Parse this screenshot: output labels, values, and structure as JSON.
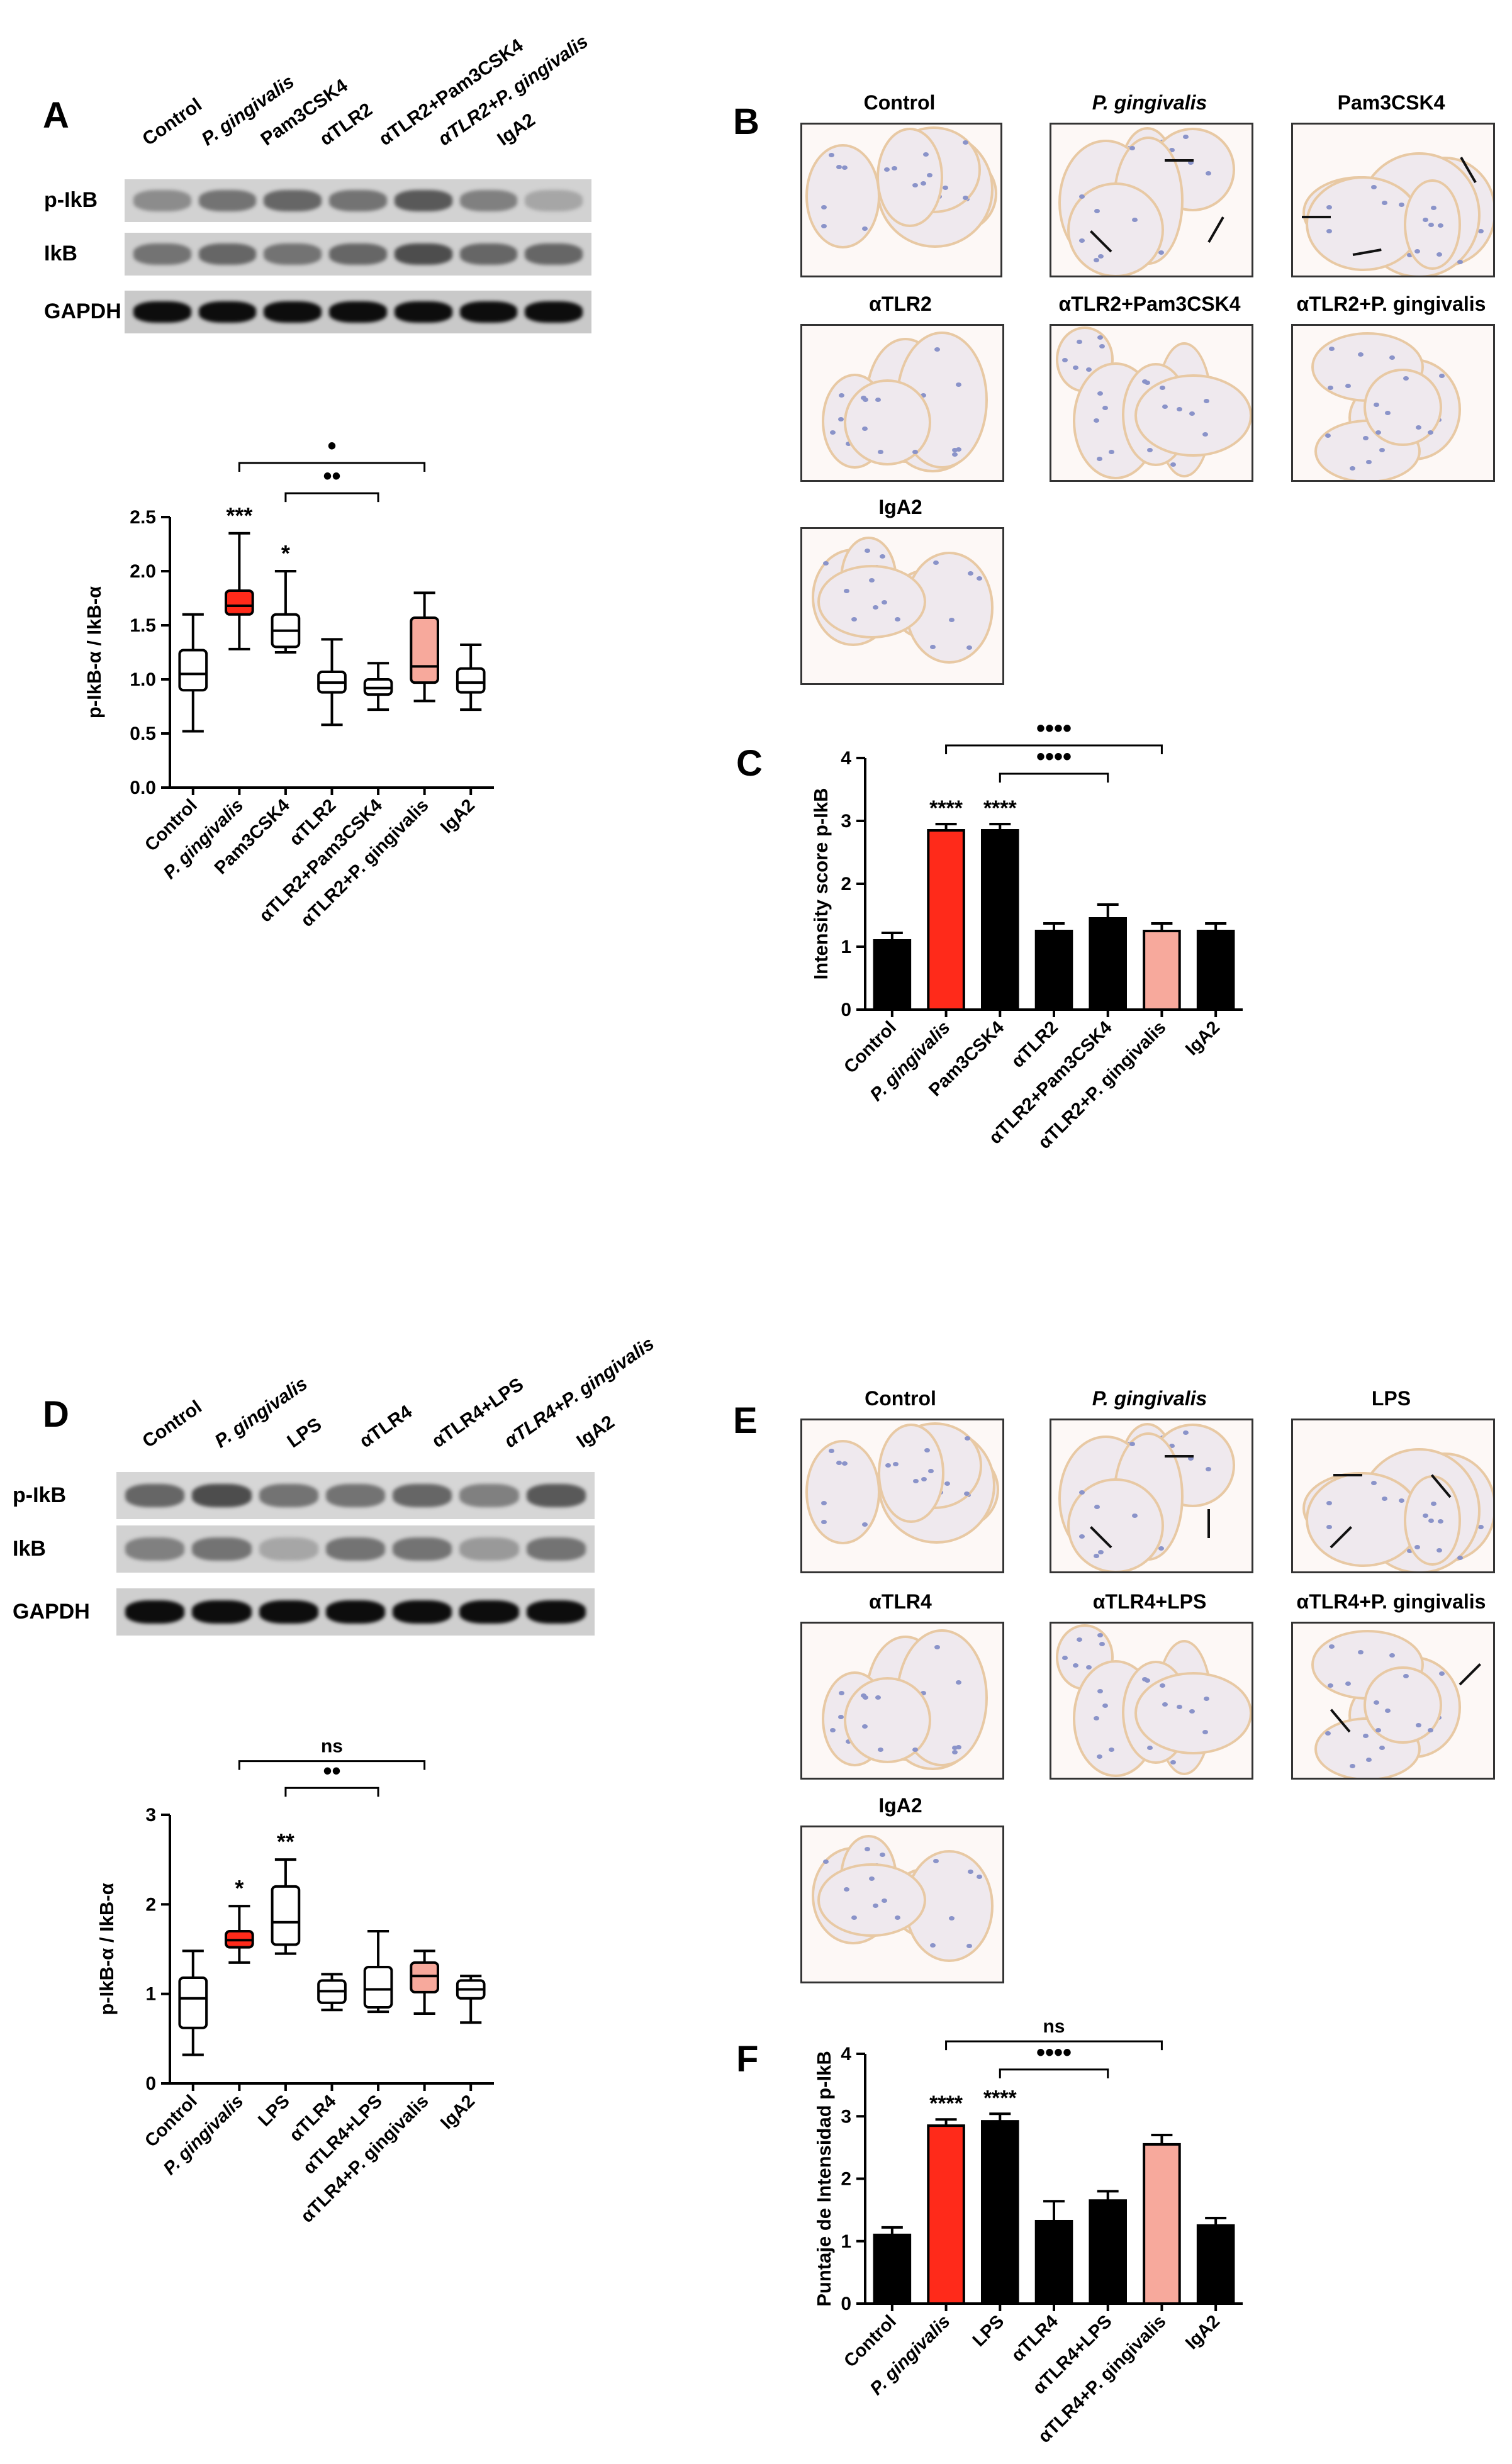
{
  "panels": {
    "A": {
      "letter": "A",
      "lanes": [
        "Control",
        "P. gingivalis",
        "Pam3CSK4",
        "αTLR2",
        "αTLR2+Pam3CSK4",
        "αTLR2+P. gingivalis",
        "IgA2"
      ],
      "rows": [
        "p-IkB",
        "IkB",
        "GAPDH"
      ]
    },
    "B": {
      "letter": "B",
      "titles": [
        "Control",
        "P. gingivalis",
        "Pam3CSK4",
        "αTLR2",
        "αTLR2+Pam3CSK4",
        "αTLR2+P. gingivalis",
        "IgA2"
      ]
    },
    "D": {
      "letter": "D",
      "lanes": [
        "Control",
        "P. gingivalis",
        "LPS",
        "αTLR4",
        "αTLR4+LPS",
        "αTLR4+P. gingivalis",
        "IgA2"
      ],
      "rows": [
        "p-IkB",
        "IkB",
        "GAPDH"
      ]
    },
    "E": {
      "letter": "E",
      "titles": [
        "Control",
        "P. gingivalis",
        "LPS",
        "αTLR4",
        "αTLR4+LPS",
        "αTLR4+P. gingivalis",
        "IgA2"
      ]
    },
    "C": {
      "letter": "C"
    },
    "F": {
      "letter": "F"
    }
  },
  "colors": {
    "red": "#ff2a1a",
    "pink": "#f7a99c",
    "black": "#000000",
    "white": "#ffffff"
  },
  "chart_data": [
    {
      "id": "A-box",
      "type": "box",
      "ylabel": "p-IkB-α / IkB-α",
      "ylim": [
        0,
        2.5
      ],
      "yticks": [
        "0.0",
        "0.5",
        "1.0",
        "1.5",
        "2.0",
        "2.5"
      ],
      "categories": [
        "Control",
        "P. gingivalis",
        "Pam3CSK4",
        "αTLR2",
        "αTLR2+Pam3CSK4",
        "αTLR2+P. gingivalis",
        "IgA2"
      ],
      "boxes": [
        {
          "min": 0.52,
          "q1": 0.9,
          "median": 1.05,
          "q3": 1.27,
          "max": 1.6,
          "fill": "white"
        },
        {
          "min": 1.28,
          "q1": 1.6,
          "median": 1.68,
          "q3": 1.82,
          "max": 2.35,
          "fill": "red"
        },
        {
          "min": 1.25,
          "q1": 1.3,
          "median": 1.45,
          "q3": 1.6,
          "max": 2.0,
          "fill": "white"
        },
        {
          "min": 0.58,
          "q1": 0.88,
          "median": 0.97,
          "q3": 1.07,
          "max": 1.37,
          "fill": "white"
        },
        {
          "min": 0.72,
          "q1": 0.86,
          "median": 0.92,
          "q3": 1.0,
          "max": 1.15,
          "fill": "white"
        },
        {
          "min": 0.8,
          "q1": 0.97,
          "median": 1.12,
          "q3": 1.57,
          "max": 1.8,
          "fill": "pink"
        },
        {
          "min": 0.72,
          "q1": 0.88,
          "median": 0.97,
          "q3": 1.1,
          "max": 1.32,
          "fill": "white"
        }
      ],
      "stars": [
        "",
        "***",
        "*",
        "",
        "",
        "",
        ""
      ],
      "brackets": [
        {
          "from": 1,
          "to": 5,
          "label": "•",
          "y": 3.0
        },
        {
          "from": 2,
          "to": 4,
          "label": "••",
          "y": 2.72
        }
      ]
    },
    {
      "id": "C-bar",
      "type": "bar",
      "ylabel": "Intensity score p-IkB",
      "ylim": [
        0,
        4
      ],
      "yticks": [
        "0",
        "1",
        "2",
        "3",
        "4"
      ],
      "categories": [
        "Control",
        "P. gingivalis",
        "Pam3CSK4",
        "αTLR2",
        "αTLR2+Pam3CSK4",
        "αTLR2+P. gingivalis",
        "IgA2"
      ],
      "values": [
        1.1,
        2.85,
        2.85,
        1.25,
        1.45,
        1.25,
        1.25
      ],
      "errors": [
        0.12,
        0.1,
        0.1,
        0.12,
        0.22,
        0.12,
        0.12
      ],
      "fills": [
        "black",
        "red",
        "black",
        "black",
        "black",
        "pink",
        "black"
      ],
      "stars": [
        "",
        "****",
        "****",
        "",
        "",
        "",
        ""
      ],
      "brackets": [
        {
          "from": 1,
          "to": 5,
          "label": "••••",
          "y": 4.2
        },
        {
          "from": 2,
          "to": 4,
          "label": "••••",
          "y": 3.75
        }
      ]
    },
    {
      "id": "D-box",
      "type": "box",
      "ylabel": "p-IkB-α / IkB-α",
      "ylim": [
        0,
        3
      ],
      "yticks": [
        "0",
        "1",
        "2",
        "3"
      ],
      "categories": [
        "Control",
        "P. gingivalis",
        "LPS",
        "αTLR4",
        "αTLR4+LPS",
        "αTLR4+P. gingivalis",
        "IgA2"
      ],
      "boxes": [
        {
          "min": 0.32,
          "q1": 0.62,
          "median": 0.95,
          "q3": 1.18,
          "max": 1.48,
          "fill": "white"
        },
        {
          "min": 1.35,
          "q1": 1.52,
          "median": 1.6,
          "q3": 1.7,
          "max": 1.98,
          "fill": "red"
        },
        {
          "min": 1.45,
          "q1": 1.55,
          "median": 1.8,
          "q3": 2.2,
          "max": 2.5,
          "fill": "white"
        },
        {
          "min": 0.82,
          "q1": 0.9,
          "median": 1.03,
          "q3": 1.15,
          "max": 1.22,
          "fill": "white"
        },
        {
          "min": 0.8,
          "q1": 0.85,
          "median": 1.05,
          "q3": 1.3,
          "max": 1.7,
          "fill": "white"
        },
        {
          "min": 0.78,
          "q1": 1.02,
          "median": 1.2,
          "q3": 1.35,
          "max": 1.48,
          "fill": "pink"
        },
        {
          "min": 0.68,
          "q1": 0.95,
          "median": 1.05,
          "q3": 1.15,
          "max": 1.2,
          "fill": "white"
        }
      ],
      "stars": [
        "",
        "*",
        "**",
        "",
        "",
        "",
        ""
      ],
      "brackets": [
        {
          "from": 1,
          "to": 5,
          "label": "ns",
          "y": 3.6
        },
        {
          "from": 2,
          "to": 4,
          "label": "••",
          "y": 3.3
        }
      ]
    },
    {
      "id": "F-bar",
      "type": "bar",
      "ylabel": "Puntaje de Intensidad p-IkB",
      "ylim": [
        0,
        4
      ],
      "yticks": [
        "0",
        "1",
        "2",
        "3",
        "4"
      ],
      "categories": [
        "Control",
        "P. gingivalis",
        "LPS",
        "αTLR4",
        "αTLR4+LPS",
        "αTLR4+P. gingivalis",
        "IgA2"
      ],
      "values": [
        1.1,
        2.85,
        2.92,
        1.32,
        1.65,
        2.55,
        1.25
      ],
      "errors": [
        0.12,
        0.1,
        0.12,
        0.32,
        0.15,
        0.15,
        0.12
      ],
      "fills": [
        "black",
        "red",
        "black",
        "black",
        "black",
        "pink",
        "black"
      ],
      "stars": [
        "",
        "****",
        "****",
        "",
        "",
        "",
        ""
      ],
      "brackets": [
        {
          "from": 1,
          "to": 5,
          "label": "ns",
          "y": 4.2
        },
        {
          "from": 2,
          "to": 4,
          "label": "••••",
          "y": 3.75
        }
      ]
    }
  ]
}
